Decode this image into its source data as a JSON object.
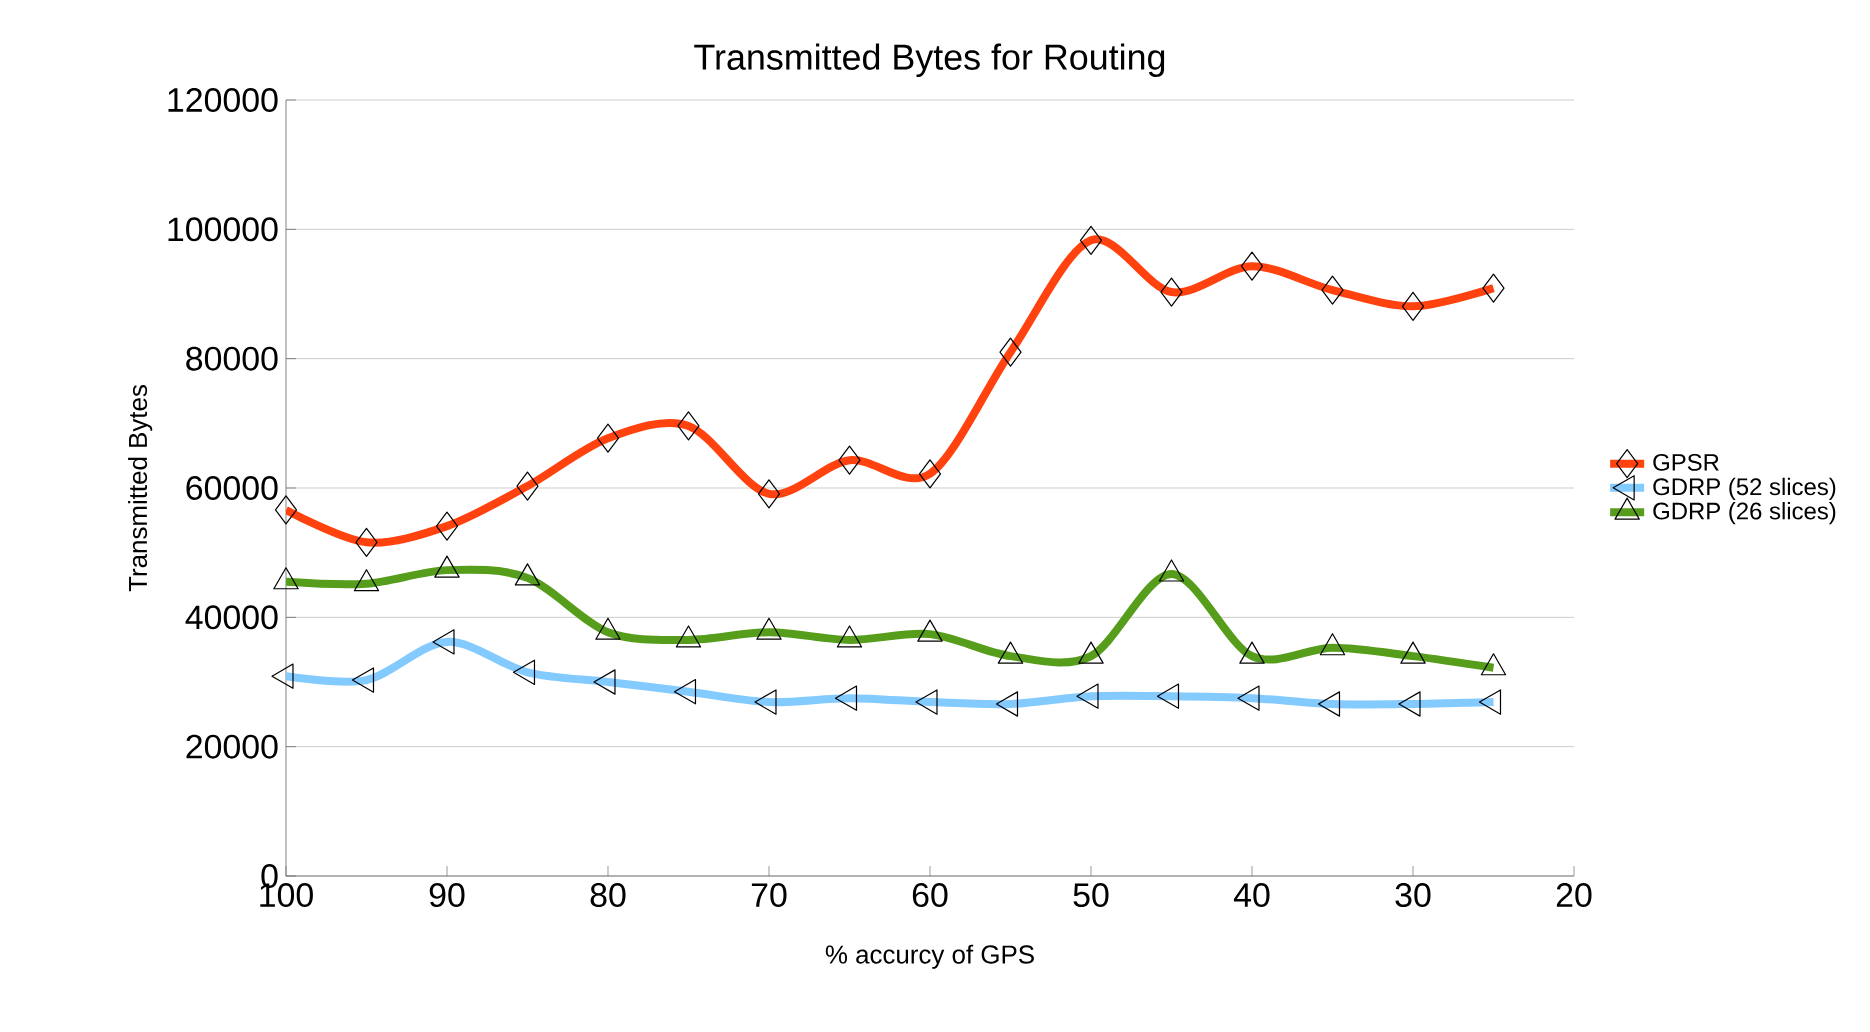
{
  "chart_data": {
    "type": "line",
    "title": "Transmitted Bytes for Routing",
    "xlabel": "% accurcy of GPS",
    "ylabel": "Transmitted Bytes",
    "x": [
      100,
      95,
      90,
      85,
      80,
      75,
      70,
      65,
      60,
      55,
      50,
      45,
      40,
      35,
      30,
      25
    ],
    "series": [
      {
        "name": "GPSR",
        "color": "#ff420e",
        "marker": "diamond",
        "values": [
          56600,
          51600,
          54100,
          60300,
          67700,
          69600,
          59100,
          64300,
          62200,
          81000,
          98300,
          90300,
          94300,
          90600,
          88100,
          90900
        ]
      },
      {
        "name": "GDRP (52 slices)",
        "color": "#83caff",
        "marker": "triangle-left",
        "values": [
          30900,
          30300,
          36200,
          31500,
          30000,
          28500,
          26900,
          27500,
          26900,
          26600,
          27800,
          27800,
          27500,
          26600,
          26600,
          26900
        ]
      },
      {
        "name": "GDRP (26 slices)",
        "color": "#579d1c",
        "marker": "triangle",
        "values": [
          45500,
          45200,
          47300,
          46100,
          37700,
          36500,
          37700,
          36500,
          37400,
          34000,
          34000,
          46700,
          34000,
          35300,
          34000,
          32200
        ]
      }
    ],
    "xlim": [
      100,
      20
    ],
    "xticks": [
      100,
      90,
      80,
      70,
      60,
      50,
      40,
      30,
      20
    ],
    "ylim": [
      0,
      120000
    ],
    "yticks": [
      0,
      20000,
      40000,
      60000,
      80000,
      100000,
      120000
    ],
    "grid": "y",
    "legend": "right",
    "line_style": "solid"
  }
}
